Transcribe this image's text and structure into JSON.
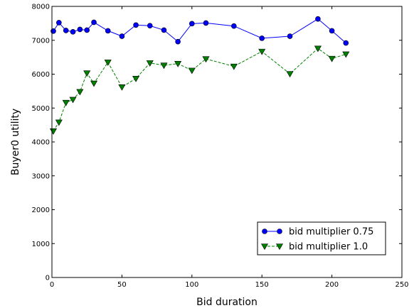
{
  "chart_data": {
    "type": "line",
    "title": "",
    "xlabel": "Bid duration",
    "ylabel": "Buyer0 utility",
    "xlim": [
      0,
      250
    ],
    "ylim": [
      0,
      8000
    ],
    "xticks": [
      0,
      50,
      100,
      150,
      200,
      250
    ],
    "yticks": [
      0,
      1000,
      2000,
      3000,
      4000,
      5000,
      6000,
      7000,
      8000
    ],
    "grid": false,
    "legend_position": "lower-right",
    "series": [
      {
        "name": "bid multiplier 0.75",
        "color": "#0000ff",
        "marker": "circle",
        "line_style": "solid",
        "x": [
          1,
          5,
          10,
          15,
          20,
          25,
          30,
          40,
          50,
          60,
          70,
          80,
          90,
          100,
          110,
          130,
          150,
          170,
          190,
          200,
          210
        ],
        "y": [
          7270,
          7520,
          7290,
          7250,
          7320,
          7300,
          7530,
          7280,
          7120,
          7450,
          7430,
          7300,
          6960,
          7490,
          7510,
          7420,
          7060,
          7120,
          7630,
          7280,
          6920
        ]
      },
      {
        "name": "bid multiplier 1.0",
        "color": "#008000",
        "marker": "triangle-down",
        "line_style": "dashed",
        "x": [
          1,
          5,
          10,
          15,
          20,
          25,
          30,
          40,
          50,
          60,
          70,
          80,
          90,
          100,
          110,
          130,
          150,
          170,
          190,
          200,
          210
        ],
        "y": [
          4320,
          4580,
          5160,
          5250,
          5480,
          6030,
          5730,
          6350,
          5620,
          5870,
          6330,
          6260,
          6310,
          6110,
          6450,
          6230,
          6670,
          6010,
          6760,
          6460,
          6590
        ]
      }
    ]
  }
}
